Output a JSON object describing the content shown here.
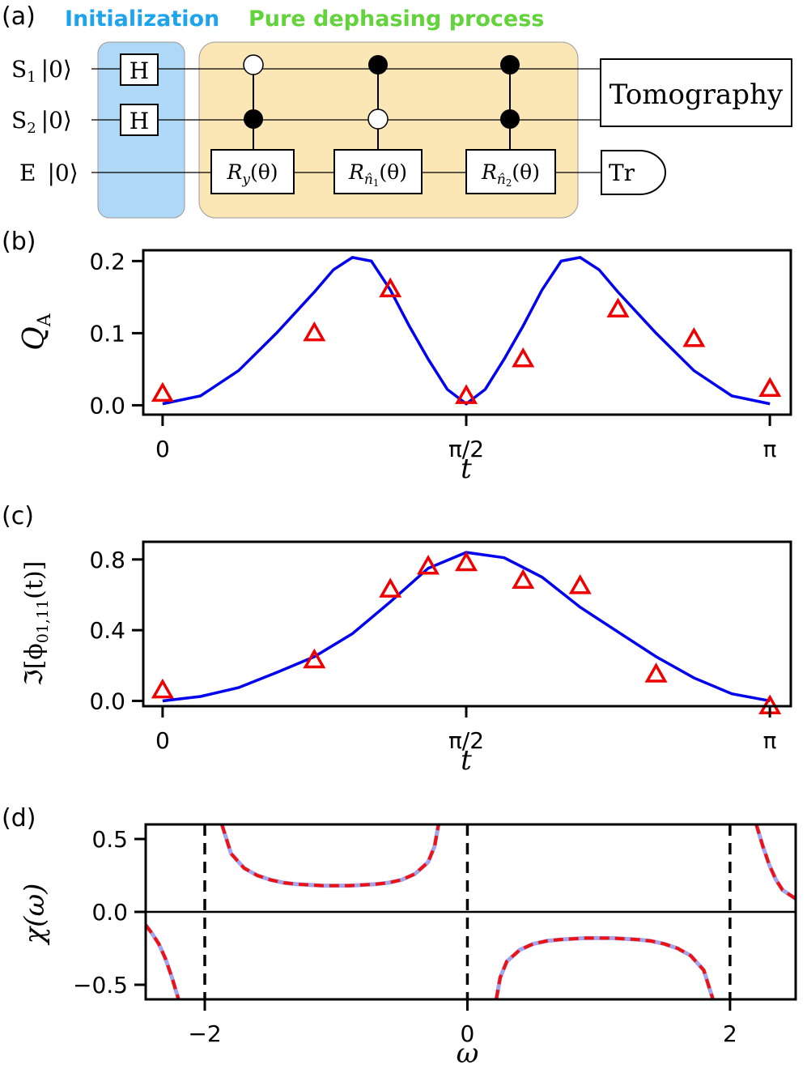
{
  "panel_labels": {
    "a": "(a)",
    "b": "(b)",
    "c": "(c)",
    "d": "(d)"
  },
  "circuit": {
    "sections": {
      "initialization": "Initialization",
      "dephasing": "Pure dephasing process"
    },
    "colors": {
      "initialization_bg": "#aed8f5",
      "dephasing_bg": "#fbe6b5",
      "initialization_text": "#1ea4ec",
      "dephasing_text": "#63d33c"
    },
    "qubits": [
      {
        "name": "S",
        "sub": "1",
        "ket": "|0⟩"
      },
      {
        "name": "S",
        "sub": "2",
        "ket": "|0⟩"
      },
      {
        "name": "E",
        "sub": "",
        "ket": "|0⟩"
      }
    ],
    "gates": {
      "hadamard": "H",
      "rotation": "R",
      "rot1_sub": "y",
      "rot2_sub": "n̂",
      "rot2_subsub": "1",
      "rot3_sub": "n̂",
      "rot3_subsub": "2",
      "theta": "(θ)",
      "tomography": "Tomography",
      "trace": "Tr"
    }
  },
  "chart_data": [
    {
      "type": "line",
      "panel": "b",
      "ylabel": "Q",
      "ylabel_sub": "A",
      "xlabel": "t",
      "xlim": [
        -0.1,
        3.25
      ],
      "ylim": [
        -0.013,
        0.215
      ],
      "xticks": [
        0,
        1.5708,
        3.1416
      ],
      "xticklabels": [
        "0",
        "π/2",
        "π"
      ],
      "yticks": [
        0.0,
        0.1,
        0.2
      ],
      "yticklabels": [
        "0.0",
        "0.1",
        "0.2"
      ],
      "series": [
        {
          "kind": "theory",
          "color": "#0000ee",
          "x": [
            0,
            0.196,
            0.393,
            0.589,
            0.785,
            0.884,
            0.982,
            1.08,
            1.178,
            1.276,
            1.374,
            1.473,
            1.571,
            1.669,
            1.767,
            1.865,
            1.963,
            2.062,
            2.16,
            2.258,
            2.356,
            2.553,
            2.749,
            2.945,
            3.142
          ],
          "y": [
            0.002,
            0.013,
            0.048,
            0.1,
            0.157,
            0.188,
            0.205,
            0.2,
            0.16,
            0.11,
            0.064,
            0.022,
            0.002,
            0.022,
            0.064,
            0.11,
            0.16,
            0.2,
            0.205,
            0.188,
            0.157,
            0.1,
            0.048,
            0.013,
            0.002
          ]
        },
        {
          "kind": "experiment",
          "marker": "triangle",
          "color": "#ee0000",
          "x": [
            0,
            0.785,
            1.178,
            1.571,
            1.865,
            2.356,
            2.749,
            3.142
          ],
          "y": [
            0.016,
            0.1,
            0.161,
            0.013,
            0.064,
            0.133,
            0.092,
            0.023
          ]
        }
      ]
    },
    {
      "type": "line",
      "panel": "c",
      "ylabel": "ℑ[ϕ",
      "ylabel_sub": "01,11",
      "ylabel_tail": "(t)]",
      "xlabel": "t",
      "xlim": [
        -0.1,
        3.25
      ],
      "ylim": [
        -0.03,
        0.9
      ],
      "xticks": [
        0,
        1.5708,
        3.1416
      ],
      "xticklabels": [
        "0",
        "π/2",
        "π"
      ],
      "yticks": [
        0.0,
        0.4,
        0.8
      ],
      "yticklabels": [
        "0.0",
        "0.4",
        "0.8"
      ],
      "series": [
        {
          "kind": "theory",
          "color": "#0000ee",
          "x": [
            0,
            0.196,
            0.393,
            0.589,
            0.785,
            0.982,
            1.178,
            1.374,
            1.571,
            1.767,
            1.963,
            2.16,
            2.356,
            2.553,
            2.749,
            2.945,
            3.142
          ],
          "y": [
            0.0,
            0.025,
            0.075,
            0.16,
            0.25,
            0.38,
            0.56,
            0.75,
            0.84,
            0.81,
            0.7,
            0.53,
            0.39,
            0.25,
            0.13,
            0.04,
            0.0
          ]
        },
        {
          "kind": "experiment",
          "marker": "triangle",
          "color": "#ee0000",
          "x": [
            0,
            0.785,
            1.178,
            1.374,
            1.571,
            1.865,
            2.16,
            2.553,
            3.142
          ],
          "y": [
            0.06,
            0.23,
            0.63,
            0.76,
            0.78,
            0.68,
            0.65,
            0.15,
            -0.03
          ]
        }
      ]
    },
    {
      "type": "line",
      "panel": "d",
      "ylabel": "χ(ω)",
      "xlabel": "ω",
      "xlim": [
        -2.45,
        2.5
      ],
      "ylim": [
        -0.6,
        0.6
      ],
      "xticks": [
        -2,
        0,
        2
      ],
      "xticklabels": [
        "−2",
        "0",
        "2"
      ],
      "yticks": [
        -0.5,
        0.0,
        0.5
      ],
      "yticklabels": [
        "−0.5",
        "0.0",
        "0.5"
      ],
      "vlines": [
        -2,
        0,
        2
      ],
      "hline": 0,
      "series": [
        {
          "kind": "theory",
          "color": "#a4a4ee",
          "segments": [
            {
              "x": [
                -2.45,
                -2.4,
                -2.35,
                -2.3,
                -2.25,
                -2.2
              ],
              "y": [
                -0.09,
                -0.15,
                -0.22,
                -0.32,
                -0.45,
                -0.6
              ]
            },
            {
              "x": [
                -1.87,
                -1.8,
                -1.7,
                -1.6,
                -1.5,
                -1.4,
                -1.3,
                -1.2,
                -1.1,
                -1.0,
                -0.9,
                -0.8,
                -0.7,
                -0.6,
                -0.5,
                -0.4,
                -0.3,
                -0.25,
                -0.22
              ],
              "y": [
                0.6,
                0.4,
                0.3,
                0.25,
                0.22,
                0.2,
                0.19,
                0.185,
                0.18,
                0.18,
                0.18,
                0.185,
                0.19,
                0.2,
                0.22,
                0.26,
                0.34,
                0.45,
                0.6
              ]
            },
            {
              "x": [
                0.22,
                0.25,
                0.3,
                0.4,
                0.5,
                0.6,
                0.7,
                0.8,
                0.9,
                1.0,
                1.1,
                1.2,
                1.3,
                1.4,
                1.5,
                1.6,
                1.7,
                1.8,
                1.87
              ],
              "y": [
                -0.6,
                -0.45,
                -0.34,
                -0.26,
                -0.22,
                -0.2,
                -0.19,
                -0.185,
                -0.18,
                -0.18,
                -0.18,
                -0.185,
                -0.19,
                -0.2,
                -0.22,
                -0.25,
                -0.3,
                -0.4,
                -0.6
              ]
            },
            {
              "x": [
                2.2,
                2.25,
                2.3,
                2.35,
                2.4,
                2.45,
                2.5
              ],
              "y": [
                0.6,
                0.45,
                0.32,
                0.22,
                0.15,
                0.12,
                0.09
              ]
            }
          ]
        },
        {
          "kind": "experiment",
          "color": "#ee1111",
          "dashed": true
        }
      ]
    }
  ]
}
